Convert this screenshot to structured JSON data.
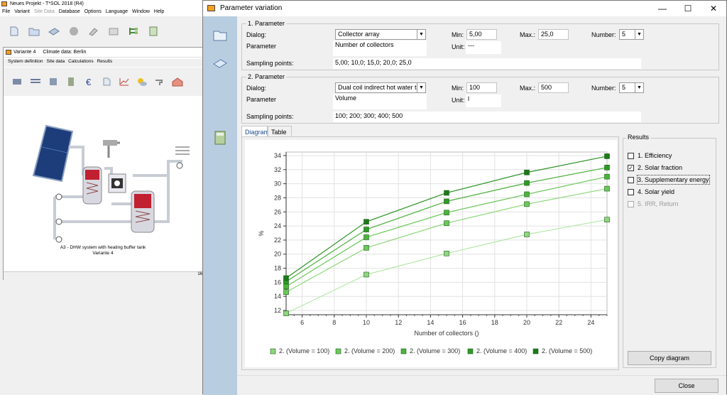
{
  "main_app": {
    "title": "Neues Projekt - T*SOL 2018 (R4)",
    "menu": [
      {
        "label": "File",
        "disabled": false
      },
      {
        "label": "Variant",
        "disabled": false
      },
      {
        "label": "Site Data",
        "disabled": true
      },
      {
        "label": "Database",
        "disabled": false
      },
      {
        "label": "Options",
        "disabled": false
      },
      {
        "label": "Language",
        "disabled": false
      },
      {
        "label": "Window",
        "disabled": false
      },
      {
        "label": "Help",
        "disabled": false
      }
    ]
  },
  "variant_window": {
    "title": "Variante 4",
    "climate": "Climate data: Berlin",
    "menu": [
      "System definition",
      "Site data",
      "Calculations",
      "Results"
    ],
    "caption_line1": "A3 - DHW system with heating buffer tank",
    "caption_line2": "Variante 4",
    "status": "16"
  },
  "dialog": {
    "title": "Parameter variation",
    "param1": {
      "group_label": "1. Parameter",
      "dialog_label": "Dialog:",
      "dialog_value": "Collector array",
      "parameter_label": "Parameter",
      "parameter_value": "Number of collectors",
      "min_label": "Min:",
      "min_value": "5,00",
      "max_label": "Max.:",
      "max_value": "25,0",
      "number_label": "Number:",
      "number_value": "5",
      "unit_label": "Unit:",
      "unit_value": "---",
      "sampling_label": "Sampling points:",
      "sampling_value": "5,00; 10,0; 15,0; 20,0; 25,0"
    },
    "param2": {
      "group_label": "2. Parameter",
      "dialog_label": "Dialog:",
      "dialog_value": "Dual coil indirect hot water tank",
      "parameter_label": "Parameter",
      "parameter_value": "Volume",
      "min_label": "Min:",
      "min_value": "100",
      "max_label": "Max.:",
      "max_value": "500",
      "number_label": "Number:",
      "number_value": "5",
      "unit_label": "Unit:",
      "unit_value": "l",
      "sampling_label": "Sampling points:",
      "sampling_value": "100; 200; 300; 400; 500"
    },
    "tabs": [
      {
        "label": "Diagram",
        "active": true
      },
      {
        "label": "Table",
        "active": false
      }
    ],
    "results": {
      "group_label": "Results",
      "items": [
        {
          "label": "1. Efficiency",
          "checked": false,
          "disabled": false
        },
        {
          "label": "2. Solar fraction",
          "checked": true,
          "disabled": false
        },
        {
          "label": "3. Supplementary energy",
          "checked": false,
          "disabled": false
        },
        {
          "label": "4. Solar yield",
          "checked": false,
          "disabled": false
        },
        {
          "label": "5. IRR, Return",
          "checked": false,
          "disabled": true
        }
      ],
      "copy_button": "Copy diagram"
    },
    "close_button": "Close"
  },
  "chart_data": {
    "type": "line",
    "xlabel": "Number of collectors  ()",
    "ylabel": "%",
    "x": [
      5,
      10,
      15,
      20,
      25
    ],
    "xlim": [
      5,
      25
    ],
    "ylim": [
      11.4,
      34.5
    ],
    "xticks": [
      6,
      8,
      10,
      12,
      14,
      16,
      18,
      20,
      22,
      24
    ],
    "yticks": [
      12,
      14,
      16,
      18,
      20,
      22,
      24,
      26,
      28,
      30,
      32,
      34
    ],
    "grid": true,
    "legend_position": "bottom",
    "series": [
      {
        "name": "2. (Volume = 100)",
        "values": [
          11.6,
          17.1,
          20.1,
          22.8,
          24.9
        ],
        "color": "#b4e8a8",
        "marker": "#8fd67f"
      },
      {
        "name": "2. (Volume = 200)",
        "values": [
          14.6,
          20.9,
          24.4,
          27.1,
          29.3
        ],
        "color": "#8ed87c",
        "marker": "#6cc85a"
      },
      {
        "name": "2. (Volume = 300)",
        "values": [
          15.4,
          22.4,
          25.9,
          28.5,
          31.0
        ],
        "color": "#6cc85a",
        "marker": "#4cb43c"
      },
      {
        "name": "2. (Volume = 400)",
        "values": [
          16.1,
          23.5,
          27.5,
          30.1,
          32.3
        ],
        "color": "#48b038",
        "marker": "#2e9a26"
      },
      {
        "name": "2. (Volume = 500)",
        "values": [
          16.6,
          24.6,
          28.7,
          31.6,
          33.9
        ],
        "color": "#2a9222",
        "marker": "#1a7a18"
      }
    ]
  }
}
